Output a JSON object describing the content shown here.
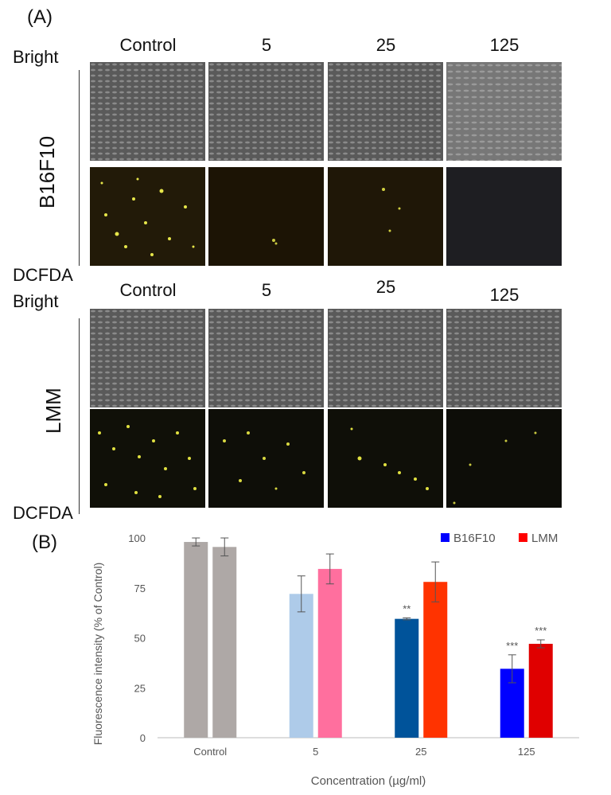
{
  "panel_a_label": "(A)",
  "panel_b_label": "(B)",
  "concentrations_top": [
    "Control",
    "5",
    "25",
    "125"
  ],
  "concentrations_bottom": [
    "Control",
    "5",
    "25",
    "125"
  ],
  "row_labels": {
    "bright_top": "Bright",
    "dcfda_top": "DCFDA",
    "bright_bottom": "Bright",
    "dcfda_bottom": "DCFDA"
  },
  "cell_lines": [
    "B16F10",
    "LMM"
  ],
  "chart_data": {
    "type": "bar",
    "title": "",
    "xlabel": "Concentration (µg/ml)",
    "ylabel": "Fluorescence intensity (% of Control)",
    "categories": [
      "Control",
      "5",
      "25",
      "125"
    ],
    "ylim": [
      0,
      100
    ],
    "yticks": [
      0,
      25,
      50,
      75,
      100
    ],
    "grid": false,
    "legend_position": "top-right",
    "series": [
      {
        "name": "B16F10",
        "legend_color": "#0000ff",
        "values": [
          98,
          72,
          59.5,
          34.5
        ],
        "errors": [
          2,
          9,
          0.5,
          7
        ],
        "colors": [
          "#aea8a6",
          "#aecbe9",
          "#00539a",
          "#0000ff"
        ],
        "annotations": [
          "",
          "",
          "**",
          "***"
        ]
      },
      {
        "name": "LMM",
        "legend_color": "#ff0000",
        "values": [
          95.5,
          84.5,
          78,
          47
        ],
        "errors": [
          4.5,
          7.5,
          10,
          2
        ],
        "colors": [
          "#aea8a6",
          "#ff6f9e",
          "#ff3300",
          "#e00000"
        ],
        "annotations": [
          "",
          "",
          "",
          "***"
        ]
      }
    ]
  }
}
